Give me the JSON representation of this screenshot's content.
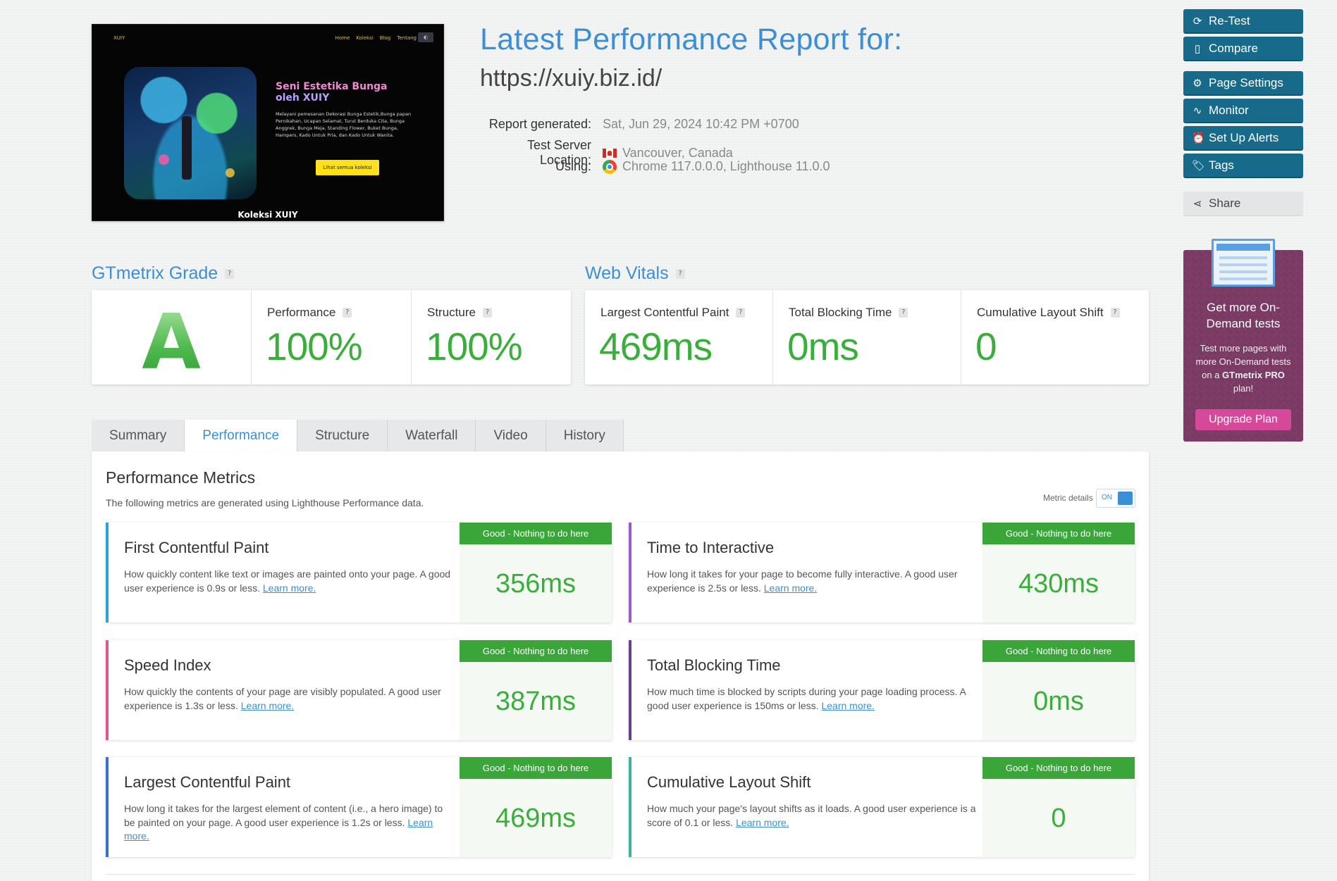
{
  "thumbnail": {
    "logo": "XUIY",
    "nav": [
      "Home",
      "Koleksi",
      "Blog",
      "Tentang"
    ],
    "title_line1": "Seni Estetika Bunga",
    "title_line2": "oleh XUIY",
    "description": "Melayani pemesanan Dekorasi Bunga Estetik,Bunga papan Pernikahan, Ucapan Selamat, Turut Berduka Cita, Bunga Anggrek, Bunga Meja, Standing Flower, Buket Bunga, Hampers, Kado Untuk Pria, dan Kado Untuk Wanita.",
    "button": "Lihat semua koleksi",
    "footer": "Koleksi XUIY"
  },
  "header": {
    "title": "Latest Performance Report for:",
    "url": "https://xuiy.biz.id/",
    "meta": [
      {
        "label": "Report generated:",
        "value": "Sat, Jun 29, 2024 10:42 PM +0700",
        "icon": ""
      },
      {
        "label": "Test Server Location:",
        "value": "Vancouver, Canada",
        "icon": "canada-flag-icon"
      },
      {
        "label": "Using:",
        "value": "Chrome 117.0.0.0, Lighthouse 11.0.0",
        "icon": "chrome-icon"
      }
    ]
  },
  "sidebar": {
    "buttons": [
      {
        "label": "Re-Test",
        "icon": "⟳",
        "name": "retest"
      },
      {
        "label": "Compare",
        "icon": "▯",
        "name": "compare"
      },
      {
        "label": "Page Settings",
        "icon": "⚙",
        "name": "page-settings"
      },
      {
        "label": "Monitor",
        "icon": "∿",
        "name": "monitor"
      },
      {
        "label": "Set Up Alerts",
        "icon": "⏰",
        "name": "set-up-alerts"
      },
      {
        "label": "Tags",
        "icon": "🏷",
        "name": "tags"
      }
    ],
    "share": {
      "label": "Share",
      "icon": "⋖"
    },
    "promo": {
      "title": "Get more On-Demand tests",
      "text_pre": "Test more pages with more On-Demand tests on a ",
      "text_bold": "GTmetrix PRO",
      "text_post": " plan!",
      "button": "Upgrade Plan"
    }
  },
  "grade": {
    "title": "GTmetrix Grade",
    "letter": "A",
    "performance_label": "Performance",
    "performance_value": "100%",
    "structure_label": "Structure",
    "structure_value": "100%"
  },
  "vitals": {
    "title": "Web Vitals",
    "items": [
      {
        "label": "Largest Contentful Paint",
        "value": "469ms"
      },
      {
        "label": "Total Blocking Time",
        "value": "0ms"
      },
      {
        "label": "Cumulative Layout Shift",
        "value": "0"
      }
    ]
  },
  "tabs": [
    {
      "label": "Summary",
      "active": false
    },
    {
      "label": "Performance",
      "active": true
    },
    {
      "label": "Structure",
      "active": false
    },
    {
      "label": "Waterfall",
      "active": false
    },
    {
      "label": "Video",
      "active": false
    },
    {
      "label": "History",
      "active": false
    }
  ],
  "panel": {
    "title": "Performance Metrics",
    "subtitle": "The following metrics are generated using Lighthouse Performance data.",
    "metric_details_label": "Metric details",
    "toggle_label": "ON",
    "metrics": [
      {
        "name": "First Contentful Paint",
        "desc": "How quickly content like text or images are painted onto your page. A good user experience is 0.9s or less.",
        "link": "Learn more.",
        "badge": "Good - Nothing to do here",
        "value": "356ms",
        "color": "#2ba3d8"
      },
      {
        "name": "Time to Interactive",
        "desc": "How long it takes for your page to become fully interactive. A good user experience is 2.5s or less.",
        "link": "Learn more.",
        "badge": "Good - Nothing to do here",
        "value": "430ms",
        "color": "#9b59c9"
      },
      {
        "name": "Speed Index",
        "desc": "How quickly the contents of your page are visibly populated. A good user experience is 1.3s or less.",
        "link": "Learn more.",
        "badge": "Good - Nothing to do here",
        "value": "387ms",
        "color": "#e0559a"
      },
      {
        "name": "Total Blocking Time",
        "desc": "How much time is blocked by scripts during your page loading process. A good user experience is 150ms or less.",
        "link": "Learn more.",
        "badge": "Good - Nothing to do here",
        "value": "0ms",
        "color": "#6b3f8f"
      },
      {
        "name": "Largest Contentful Paint",
        "desc": "How long it takes for the largest element of content (i.e., a hero image) to be painted on your page. A good user experience is 1.2s or less.",
        "link": "Learn more.",
        "badge": "Good - Nothing to do here",
        "value": "469ms",
        "color": "#3a6fd6"
      },
      {
        "name": "Cumulative Layout Shift",
        "desc": "How much your page's layout shifts as it loads. A good user experience is a score of 0.1 or less.",
        "link": "Learn more.",
        "badge": "Good - Nothing to do here",
        "value": "0",
        "color": "#3ab59a"
      }
    ]
  },
  "colors": {
    "accent": "#3a8fd6",
    "sidebar_button": "#176a8a",
    "good_green": "#3aa63a",
    "promo_bg": "#7a3a64",
    "upgrade_button": "#d6489a"
  }
}
